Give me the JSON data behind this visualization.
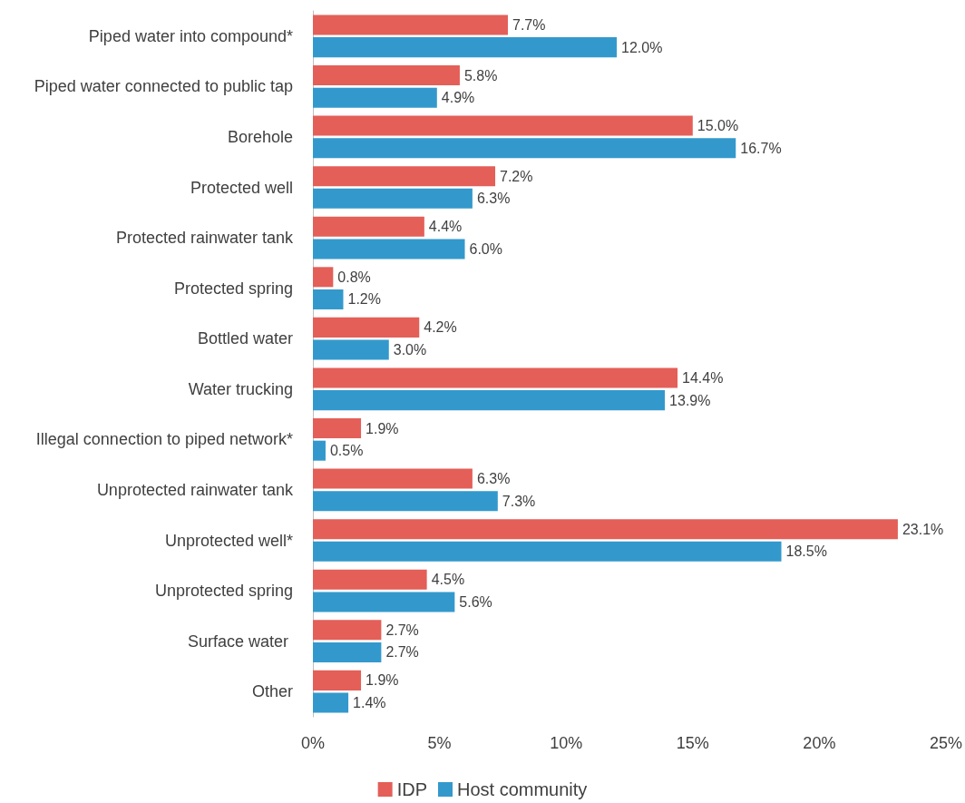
{
  "chart_data": {
    "type": "bar",
    "orientation": "horizontal",
    "categories": [
      "Piped water into compound*",
      "Piped water connected to public tap",
      "Borehole",
      "Protected well",
      "Protected rainwater tank",
      "Protected spring",
      "Bottled water",
      "Water trucking",
      "Illegal connection to piped network*",
      "Unprotected rainwater tank",
      "Unprotected well*",
      "Unprotected spring",
      "Surface water ",
      "Other"
    ],
    "series": [
      {
        "name": "IDP",
        "color": "#e35f58",
        "values": [
          7.7,
          5.8,
          15.0,
          7.2,
          4.4,
          0.8,
          4.2,
          14.4,
          1.9,
          6.3,
          23.1,
          4.5,
          2.7,
          1.9
        ],
        "value_labels": [
          "7.7%",
          "5.8%",
          "15.0%",
          "7.2%",
          "4.4%",
          "0.8%",
          "4.2%",
          "14.4%",
          "1.9%",
          "6.3%",
          "23.1%",
          "4.5%",
          "2.7%",
          "1.9%"
        ]
      },
      {
        "name": "Host community",
        "color": "#3399cc",
        "values": [
          12.0,
          4.9,
          16.7,
          6.3,
          6.0,
          1.2,
          3.0,
          13.9,
          0.5,
          7.3,
          18.5,
          5.6,
          2.7,
          1.4
        ],
        "value_labels": [
          "12.0%",
          "4.9%",
          "16.7%",
          "6.3%",
          "6.0%",
          "1.2%",
          "3.0%",
          "13.9%",
          "0.5%",
          "7.3%",
          "18.5%",
          "5.6%",
          "2.7%",
          "1.4%"
        ]
      }
    ],
    "xlim": [
      0,
      25
    ],
    "xticks": [
      {
        "value": 0,
        "label": "0%"
      },
      {
        "value": 5,
        "label": "5%"
      },
      {
        "value": 10,
        "label": "10%"
      },
      {
        "value": 15,
        "label": "15%"
      },
      {
        "value": 20,
        "label": "20%"
      },
      {
        "value": 25,
        "label": "25%"
      }
    ],
    "grid": false,
    "legend": "bottom"
  }
}
